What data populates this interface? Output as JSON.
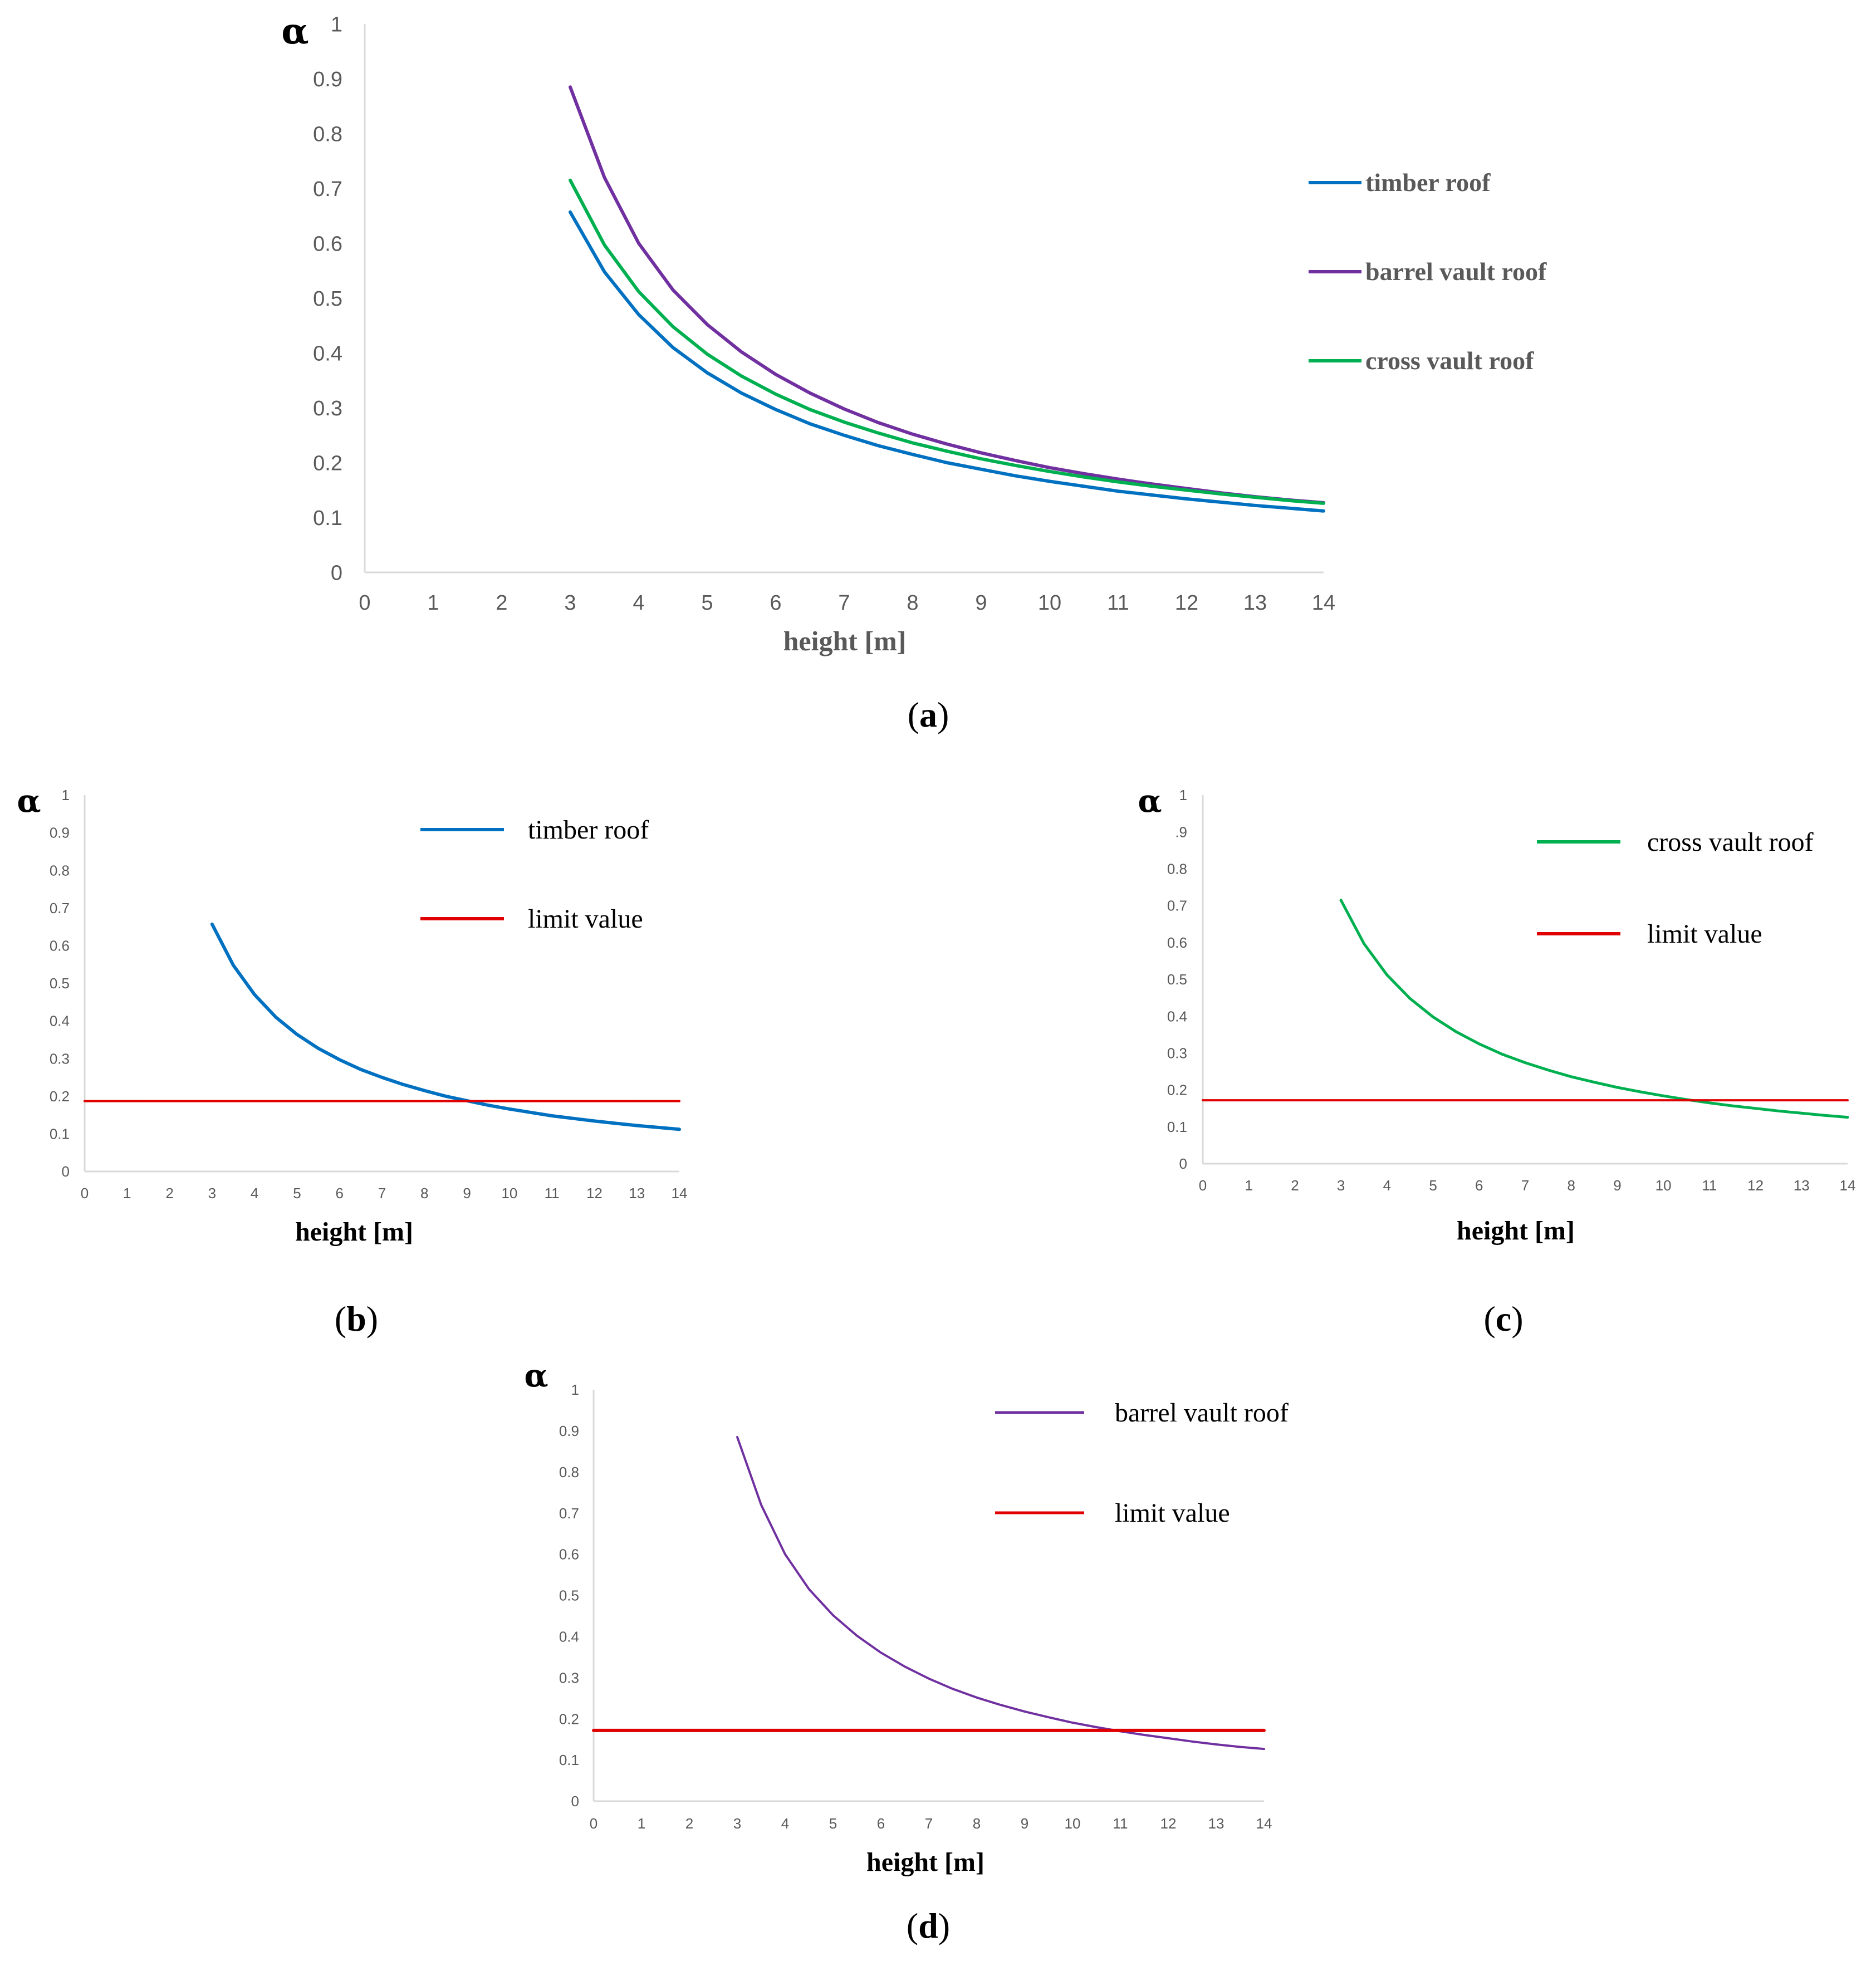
{
  "figure": {
    "captions": [
      "(a)",
      "(b)",
      "(c)",
      "(d)"
    ],
    "caption_letters": [
      "a",
      "b",
      "c",
      "d"
    ]
  },
  "colors": {
    "timber": "#0070C0",
    "barrel": "#7030A0",
    "cross": "#00B050",
    "limit": "#E00000",
    "axis": "#D9D9D9",
    "tick": "#595959"
  },
  "chart_data": [
    {
      "id": "a",
      "type": "line",
      "title": "",
      "xlabel": "height [m]",
      "ylabel": "α",
      "xlim": [
        0,
        14
      ],
      "ylim": [
        0,
        1
      ],
      "xticks": [
        "0",
        "1",
        "2",
        "3",
        "4",
        "5",
        "6",
        "7",
        "8",
        "9",
        "10",
        "11",
        "12",
        "13",
        "14"
      ],
      "yticks": [
        "0",
        "0.1",
        "0.2",
        "0.3",
        "0.4",
        "0.5",
        "0.6",
        "0.7",
        "0.8",
        "0.9",
        "1"
      ],
      "legend_position": "right",
      "series": [
        {
          "name": "timber roof",
          "color": "#0070C0",
          "x": [
            3,
            3.5,
            4,
            4.5,
            5,
            5.5,
            6,
            6.5,
            7,
            7.5,
            8,
            8.5,
            9,
            9.5,
            10,
            10.5,
            11,
            11.5,
            12,
            12.5,
            13,
            13.5,
            14
          ],
          "y": [
            0.657,
            0.548,
            0.47,
            0.41,
            0.364,
            0.327,
            0.297,
            0.271,
            0.25,
            0.231,
            0.215,
            0.2,
            0.188,
            0.176,
            0.166,
            0.157,
            0.148,
            0.141,
            0.134,
            0.128,
            0.122,
            0.117,
            0.112
          ]
        },
        {
          "name": "barrel vault roof",
          "color": "#7030A0",
          "x": [
            3,
            3.5,
            4,
            4.5,
            5,
            5.5,
            6,
            6.5,
            7,
            7.5,
            8,
            8.5,
            9,
            9.5,
            10,
            10.5,
            11,
            11.5,
            12,
            12.5,
            13,
            13.5,
            14
          ],
          "y": [
            0.885,
            0.72,
            0.6,
            0.515,
            0.452,
            0.402,
            0.361,
            0.327,
            0.298,
            0.273,
            0.252,
            0.234,
            0.218,
            0.204,
            0.191,
            0.18,
            0.17,
            0.161,
            0.153,
            0.145,
            0.138,
            0.132,
            0.127
          ]
        },
        {
          "name": "cross vault roof",
          "color": "#00B050",
          "x": [
            3,
            3.5,
            4,
            4.5,
            5,
            5.5,
            6,
            6.5,
            7,
            7.5,
            8,
            8.5,
            9,
            9.5,
            10,
            10.5,
            11,
            11.5,
            12,
            12.5,
            13,
            13.5,
            14
          ],
          "y": [
            0.715,
            0.597,
            0.512,
            0.448,
            0.398,
            0.358,
            0.325,
            0.297,
            0.274,
            0.254,
            0.236,
            0.221,
            0.207,
            0.195,
            0.184,
            0.174,
            0.165,
            0.157,
            0.15,
            0.143,
            0.137,
            0.131,
            0.126
          ]
        }
      ]
    },
    {
      "id": "b",
      "type": "line",
      "title": "",
      "xlabel": "height [m]",
      "ylabel": "α",
      "xlim": [
        0,
        14
      ],
      "ylim": [
        0,
        1
      ],
      "xticks": [
        "0",
        "1",
        "2",
        "3",
        "4",
        "5",
        "6",
        "7",
        "8",
        "9",
        "10",
        "11",
        "12",
        "13",
        "14"
      ],
      "yticks": [
        "0",
        "0.1",
        "0.2",
        "0.3",
        "0.4",
        "0.5",
        "0.6",
        "0.7",
        "0.8",
        "0.9",
        "1"
      ],
      "legend_position": "top-right",
      "series": [
        {
          "name": "timber roof",
          "color": "#0070C0",
          "x": [
            3,
            3.5,
            4,
            4.5,
            5,
            5.5,
            6,
            6.5,
            7,
            7.5,
            8,
            8.5,
            9,
            9.5,
            10,
            10.5,
            11,
            11.5,
            12,
            12.5,
            13,
            13.5,
            14
          ],
          "y": [
            0.657,
            0.548,
            0.47,
            0.41,
            0.364,
            0.327,
            0.297,
            0.271,
            0.25,
            0.231,
            0.215,
            0.2,
            0.188,
            0.176,
            0.166,
            0.157,
            0.148,
            0.141,
            0.134,
            0.128,
            0.122,
            0.117,
            0.112
          ]
        },
        {
          "name": "limit value",
          "color": "#E00000",
          "x": [
            0,
            14
          ],
          "y": [
            0.187,
            0.187
          ]
        }
      ]
    },
    {
      "id": "c",
      "type": "line",
      "title": "",
      "xlabel": "height [m]",
      "ylabel": "α",
      "xlim": [
        0,
        14
      ],
      "ylim": [
        0,
        1
      ],
      "xticks": [
        "0",
        "1",
        "2",
        "3",
        "4",
        "5",
        "6",
        "7",
        "8",
        "9",
        "10",
        "11",
        "12",
        "13",
        "14"
      ],
      "yticks": [
        "0",
        "0.1",
        "0.2",
        "0.3",
        "0.4",
        "0.5",
        "0.6",
        "0.7",
        "0.8",
        ".9",
        "1"
      ],
      "legend_position": "top-right",
      "series": [
        {
          "name": "cross vault roof",
          "color": "#00B050",
          "x": [
            3,
            3.5,
            4,
            4.5,
            5,
            5.5,
            6,
            6.5,
            7,
            7.5,
            8,
            8.5,
            9,
            9.5,
            10,
            10.5,
            11,
            11.5,
            12,
            12.5,
            13,
            13.5,
            14
          ],
          "y": [
            0.715,
            0.597,
            0.512,
            0.448,
            0.398,
            0.358,
            0.325,
            0.297,
            0.274,
            0.254,
            0.236,
            0.221,
            0.207,
            0.195,
            0.184,
            0.174,
            0.165,
            0.157,
            0.15,
            0.143,
            0.137,
            0.131,
            0.126
          ]
        },
        {
          "name": "limit value",
          "color": "#E00000",
          "x": [
            0,
            14
          ],
          "y": [
            0.172,
            0.172
          ]
        }
      ]
    },
    {
      "id": "d",
      "type": "line",
      "title": "",
      "xlabel": "height [m]",
      "ylabel": "α",
      "xlim": [
        0,
        14
      ],
      "ylim": [
        0,
        1
      ],
      "xticks": [
        "0",
        "1",
        "2",
        "3",
        "4",
        "5",
        "6",
        "7",
        "8",
        "9",
        "10",
        "11",
        "12",
        "13",
        "14"
      ],
      "yticks": [
        "0",
        "0.1",
        "0.2",
        "0.3",
        "0.4",
        "0.5",
        "0.6",
        "0.7",
        "0.8",
        "0.9",
        "1"
      ],
      "legend_position": "top-right",
      "series": [
        {
          "name": "barrel vault roof",
          "color": "#7030A0",
          "x": [
            3,
            3.5,
            4,
            4.5,
            5,
            5.5,
            6,
            6.5,
            7,
            7.5,
            8,
            8.5,
            9,
            9.5,
            10,
            10.5,
            11,
            11.5,
            12,
            12.5,
            13,
            13.5,
            14
          ],
          "y": [
            0.885,
            0.72,
            0.6,
            0.515,
            0.452,
            0.402,
            0.361,
            0.327,
            0.298,
            0.273,
            0.252,
            0.234,
            0.218,
            0.204,
            0.191,
            0.18,
            0.17,
            0.161,
            0.153,
            0.145,
            0.138,
            0.132,
            0.127
          ]
        },
        {
          "name": "limit value",
          "color": "#E00000",
          "x": [
            0,
            14
          ],
          "y": [
            0.172,
            0.172
          ]
        }
      ]
    }
  ]
}
